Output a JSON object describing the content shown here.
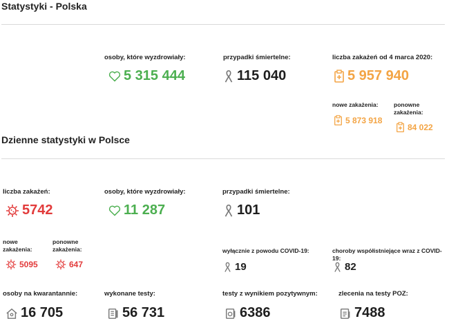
{
  "page": {
    "title": "Statystyki - Polska"
  },
  "overall": {
    "recovered": {
      "label": "osoby, które wyzdrowiały:",
      "value": "5 315 444",
      "icon": "heart-icon",
      "color": "#4caf50"
    },
    "deaths": {
      "label": "przypadki śmiertelne:",
      "value": "115 040",
      "icon": "ribbon-icon"
    },
    "infections": {
      "label": "liczba zakażeń od 4 marca 2020:",
      "value": "5 957 940",
      "icon": "clipboard-medical-icon",
      "color": "#f3a444"
    },
    "new_infections": {
      "label": "nowe zakażenia:",
      "value": "5 873 918"
    },
    "reinfections": {
      "label": "ponowne zakażenia:",
      "value": "84 022"
    }
  },
  "daily": {
    "title": "Dzienne statystyki w Polsce",
    "infections": {
      "label": "liczba zakażeń:",
      "value": "5742",
      "icon": "virus-icon",
      "color": "#e23b3b"
    },
    "recovered": {
      "label": "osoby, które wyzdrowiały:",
      "value": "11 287"
    },
    "deaths": {
      "label": "przypadki śmiertelne:",
      "value": "101"
    },
    "new_infections": {
      "label": "nowe zakażenia:",
      "value": "5095"
    },
    "reinfections": {
      "label": "ponowne zakażenia:",
      "value": "647"
    },
    "covid_only": {
      "label": "wyłącznie z powodu COVID-19:",
      "value": "19"
    },
    "comorbid": {
      "label": "choroby współistniejące wraz z COVID-19:",
      "value": "82"
    },
    "quarantine": {
      "label": "osoby na kwarantannie:",
      "value": "16 705",
      "icon": "house-icon"
    },
    "tests": {
      "label": "wykonane testy:",
      "value": "56 731",
      "icon": "test-tube-icon"
    },
    "positive_tests": {
      "label": "testy z wynikiem pozytywnym:",
      "value": "6386",
      "icon": "test-positive-icon"
    },
    "poz_orders": {
      "label": "zlecenia na testy POZ:",
      "value": "7488",
      "icon": "order-clipboard-icon"
    }
  }
}
